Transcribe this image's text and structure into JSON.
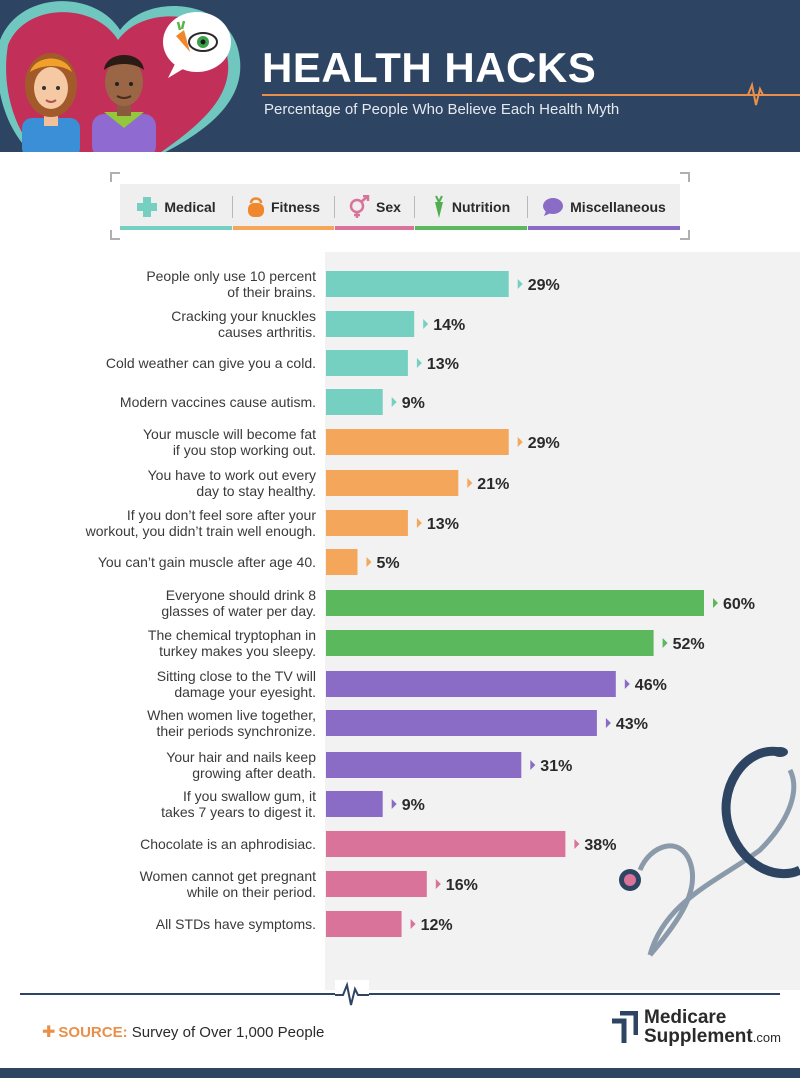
{
  "header": {
    "title": "HEALTH HACKS",
    "subtitle": "Percentage of People Who Believe Each Health Myth"
  },
  "legend": [
    {
      "label": "Medical",
      "icon": "medical-cross-icon",
      "color": "#75d0c2"
    },
    {
      "label": "Fitness",
      "icon": "kettlebell-icon",
      "color": "#f4a65a"
    },
    {
      "label": "Sex",
      "icon": "gender-symbol-icon",
      "color": "#d9739a"
    },
    {
      "label": "Nutrition",
      "icon": "carrot-icon",
      "color": "#5cb85c"
    },
    {
      "label": "Miscellaneous",
      "icon": "speech-bubble-icon",
      "color": "#8a6cc6"
    }
  ],
  "colors": {
    "Medical": "#75d0c2",
    "Fitness": "#f4a65a",
    "Nutrition": "#5cb85c",
    "Miscellaneous": "#8a6cc6",
    "Sex": "#d9739a",
    "navy": "#2d4462",
    "orange": "#e98f4a"
  },
  "chart_data": {
    "type": "bar",
    "orientation": "horizontal",
    "value_suffix": "%",
    "categories": [
      [
        "People only use 10 percent",
        "of their brains."
      ],
      [
        "Cracking your knuckles",
        "causes arthritis."
      ],
      [
        "Cold weather can give you a cold."
      ],
      [
        "Modern vaccines cause autism."
      ],
      [
        "Your muscle will become fat",
        "if you stop working out."
      ],
      [
        "You have to work out every",
        "day to stay healthy."
      ],
      [
        "If you don’t feel sore after your",
        "workout, you didn’t train well enough."
      ],
      [
        "You can’t gain muscle after age 40."
      ],
      [
        "Everyone should drink 8",
        "glasses of water per day."
      ],
      [
        "The chemical tryptophan in",
        "turkey makes you sleepy."
      ],
      [
        "Sitting close to the TV will",
        "damage your eyesight."
      ],
      [
        "When women live together,",
        "their periods synchronize."
      ],
      [
        "Your hair and nails keep",
        "growing after death."
      ],
      [
        "If you swallow gum, it",
        "takes 7 years to digest it."
      ],
      [
        "Chocolate is an aphrodisiac."
      ],
      [
        "Women cannot get pregnant",
        "while on their period."
      ],
      [
        "All STDs have symptoms."
      ]
    ],
    "values": [
      29,
      14,
      13,
      9,
      29,
      21,
      13,
      5,
      60,
      52,
      46,
      43,
      31,
      9,
      38,
      16,
      12
    ],
    "groups": [
      "Medical",
      "Medical",
      "Medical",
      "Medical",
      "Fitness",
      "Fitness",
      "Fitness",
      "Fitness",
      "Nutrition",
      "Nutrition",
      "Miscellaneous",
      "Miscellaneous",
      "Miscellaneous",
      "Miscellaneous",
      "Sex",
      "Sex",
      "Sex"
    ],
    "xlim": [
      0,
      60
    ]
  },
  "footer": {
    "source_label": "SOURCE:",
    "source_text": "Survey of Over 1,000 People",
    "brand_line1": "Medicare",
    "brand_line2": "Supplement",
    "brand_domain": ".com"
  }
}
